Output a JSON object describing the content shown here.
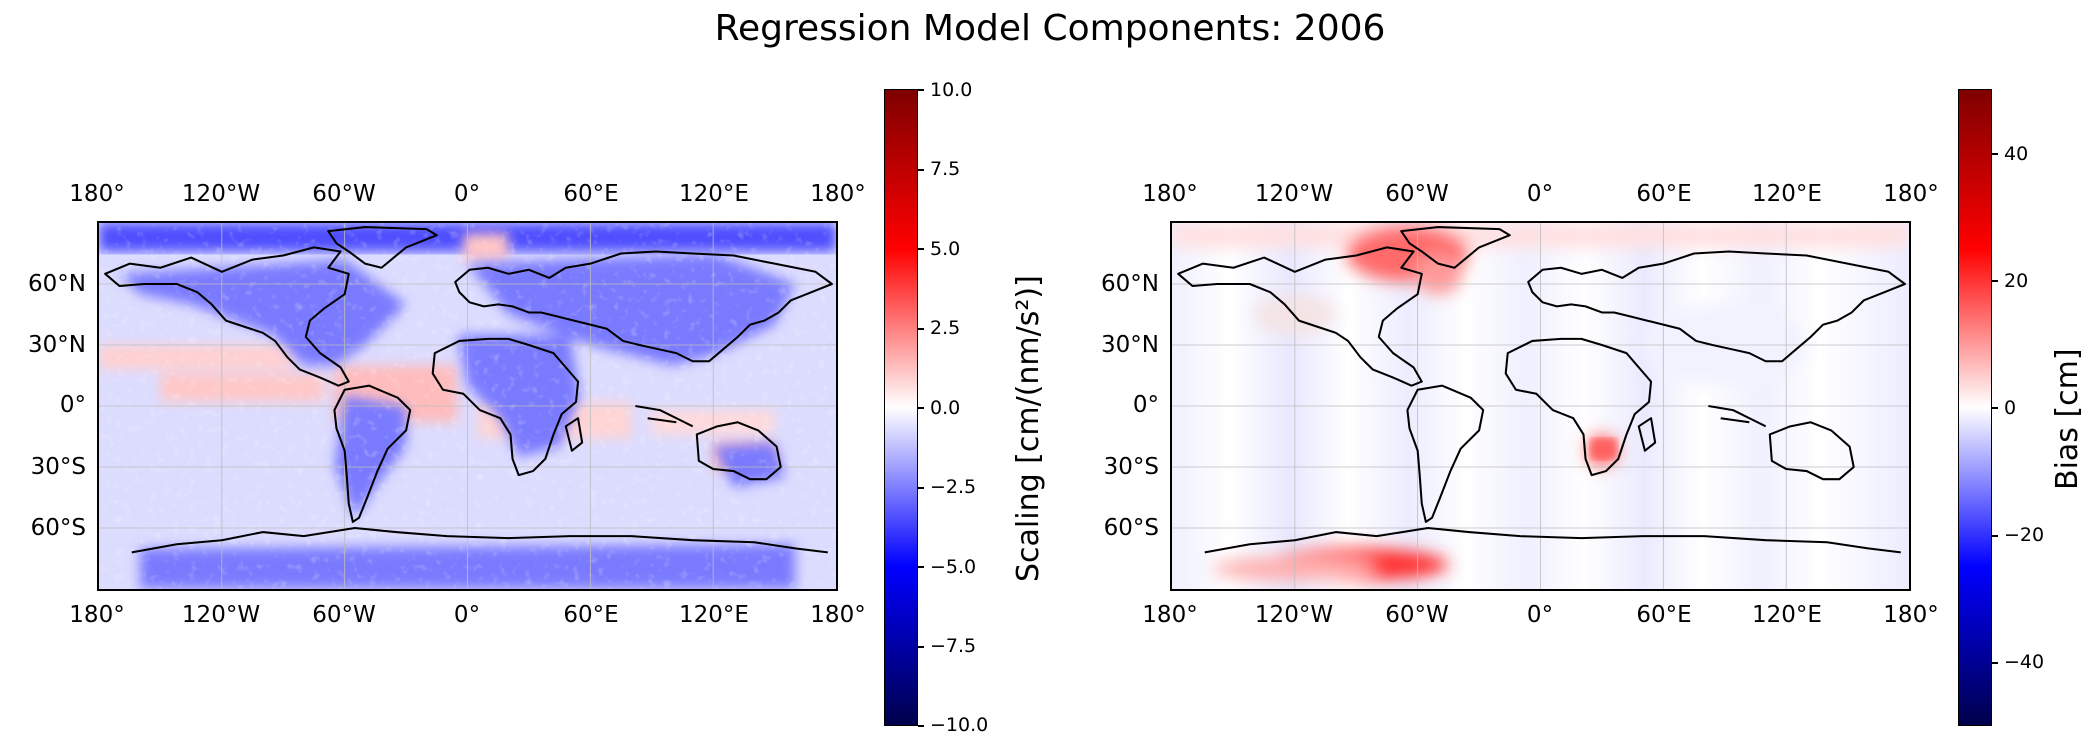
{
  "title": "Regression Model Components: 2006",
  "lon_ticks": [
    "180°",
    "120°W",
    "60°W",
    "0°",
    "60°E",
    "120°E",
    "180°"
  ],
  "lat_ticks": [
    "60°N",
    "30°N",
    "0°",
    "30°S",
    "60°S"
  ],
  "maps": [
    {
      "name": "scaling",
      "colorbar": {
        "label": "Scaling [cm/(nm/s²)]",
        "range": [
          -10.0,
          10.0
        ],
        "ticks": [
          "10.0",
          "7.5",
          "5.0",
          "2.5",
          "0.0",
          "−2.5",
          "−5.0",
          "−7.5",
          "−10.0"
        ],
        "colormap": "seismic",
        "colors": [
          "#00004c",
          "#0000ff",
          "#ffffff",
          "#ff0000",
          "#7f0000"
        ]
      }
    },
    {
      "name": "bias",
      "colorbar": {
        "label": "Bias [cm]",
        "range": [
          -50,
          50
        ],
        "ticks": [
          "40",
          "20",
          "0",
          "−20",
          "−40"
        ],
        "colormap": "seismic",
        "colors": [
          "#00004c",
          "#0000ff",
          "#ffffff",
          "#ff0000",
          "#7f0000"
        ]
      }
    }
  ]
}
